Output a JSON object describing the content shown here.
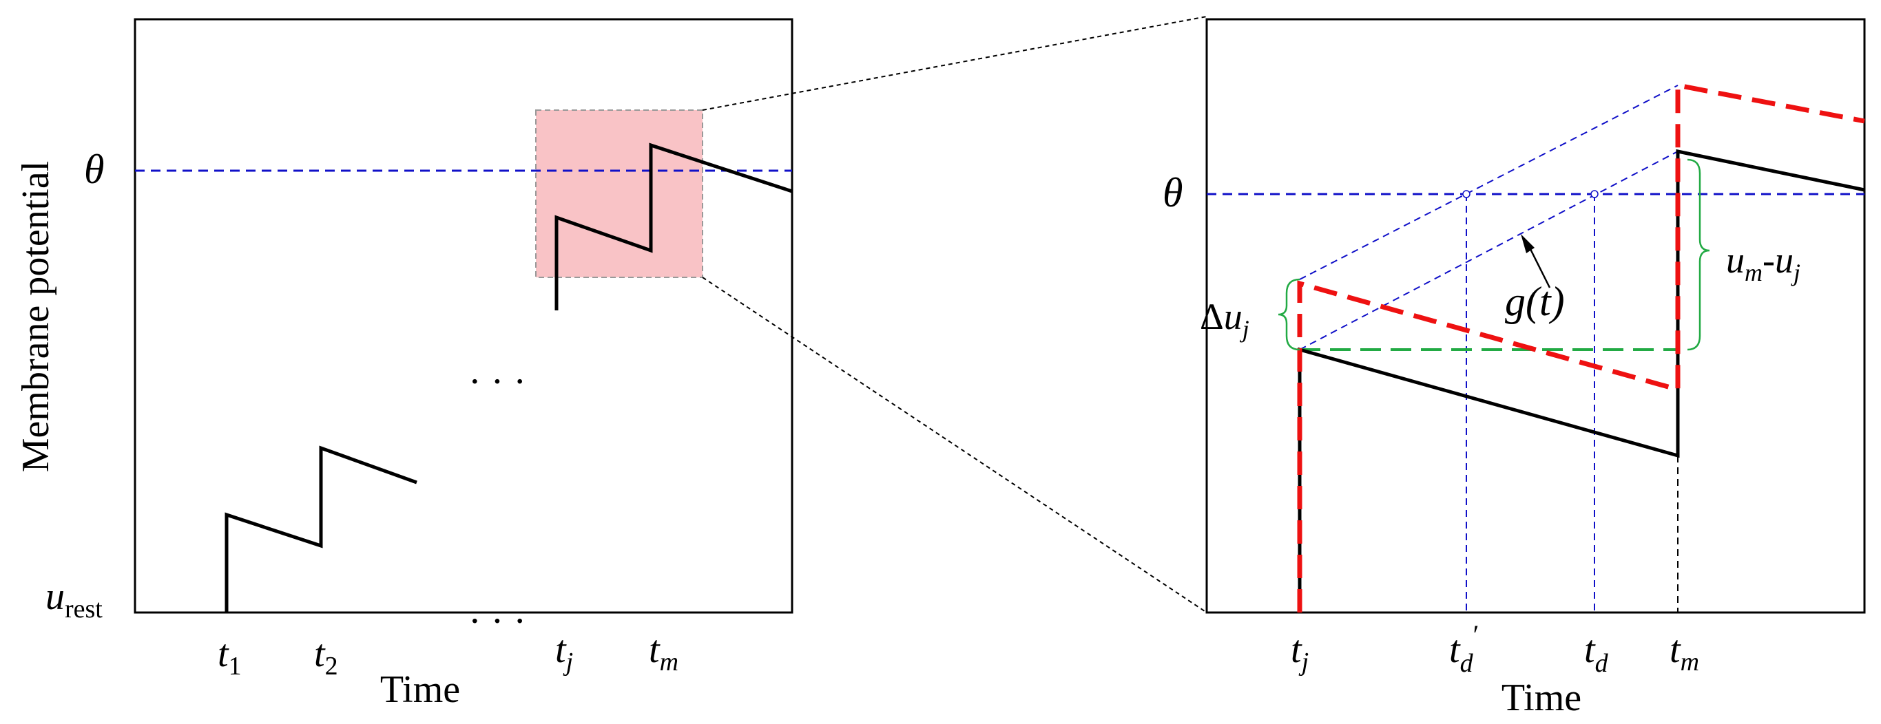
{
  "left_panel": {
    "ylabel": "Membrane potential",
    "xlabel": "Time",
    "theta": "θ",
    "u_rest": {
      "base": "u",
      "sub": "rest"
    },
    "ellipsis_mid": "· · ·",
    "ellipsis_axis": "· · ·",
    "ticks": [
      {
        "base": "t",
        "sub": "1"
      },
      {
        "base": "t",
        "sub": "2"
      },
      {
        "base": "t",
        "sub": "j"
      },
      {
        "base": "t",
        "sub": "m"
      }
    ]
  },
  "right_panel": {
    "xlabel": "Time",
    "theta": "θ",
    "delta_uj": {
      "prefix": "Δ",
      "base": "u",
      "sub": "j"
    },
    "um_minus_uj": {
      "base1": "u",
      "sub1": "m",
      "mid": "-",
      "base2": "u",
      "sub2": "j"
    },
    "g_label": "g(t)",
    "ticks": [
      {
        "base": "t",
        "sub": "j",
        "sup": ""
      },
      {
        "base": "t",
        "sub": "d",
        "sup": "′"
      },
      {
        "base": "t",
        "sub": "d",
        "sup": ""
      },
      {
        "base": "t",
        "sub": "m",
        "sup": ""
      }
    ]
  },
  "colors": {
    "axis": "#000000",
    "potential": "#000000",
    "threshold": "#1010c8",
    "red_dashed": "#ee1111",
    "green": "#22aa44",
    "highlight_fill": "#f9c3c6",
    "highlight_stroke": "#999999"
  }
}
